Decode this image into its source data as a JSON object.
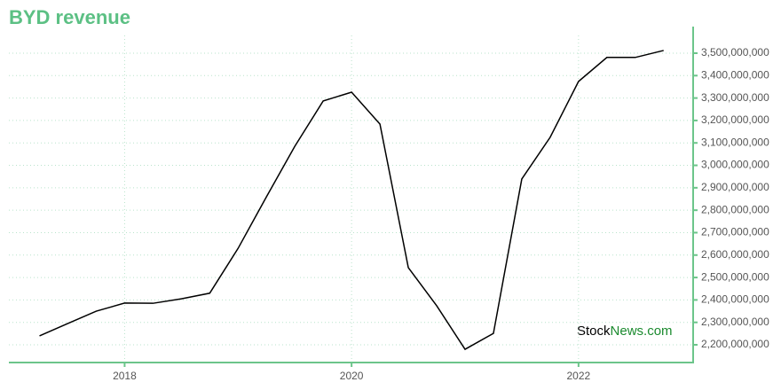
{
  "chart_data": {
    "type": "line",
    "title": "BYD revenue",
    "x": [
      2017.25,
      2017.5,
      2017.75,
      2018.0,
      2018.25,
      2018.5,
      2018.75,
      2019.0,
      2019.25,
      2019.5,
      2019.75,
      2020.0,
      2020.25,
      2020.5,
      2020.75,
      2021.0,
      2021.25,
      2021.5,
      2021.75,
      2022.0,
      2022.25,
      2022.5,
      2022.75
    ],
    "series": [
      {
        "name": "BYD revenue",
        "color": "#000000",
        "values": [
          2240000000,
          2295000000,
          2350000000,
          2386000000,
          2385000000,
          2405000000,
          2430000000,
          2630000000,
          2860000000,
          3085000000,
          3287000000,
          3326000000,
          3184000000,
          2544000000,
          2374000000,
          2180000000,
          2251000000,
          2939000000,
          3125000000,
          3374000000,
          3481000000,
          3481000000,
          3512000000
        ]
      }
    ],
    "xlim": [
      2016.98,
      2023.01
    ],
    "xticks": [
      2018,
      2020,
      2022
    ],
    "ylim": [
      2121000000,
      3579000000
    ],
    "yticks": [
      {
        "value": 2200000000,
        "label": "2,200,000,000"
      },
      {
        "value": 2300000000,
        "label": "2,300,000,000"
      },
      {
        "value": 2400000000,
        "label": "2,400,000,000"
      },
      {
        "value": 2500000000,
        "label": "2,500,000,000"
      },
      {
        "value": 2600000000,
        "label": "2,600,000,000"
      },
      {
        "value": 2700000000,
        "label": "2,700,000,000"
      },
      {
        "value": 2800000000,
        "label": "2,800,000,000"
      },
      {
        "value": 2900000000,
        "label": "2,900,000,000"
      },
      {
        "value": 3000000000,
        "label": "3,000,000,000"
      },
      {
        "value": 3100000000,
        "label": "3,100,000,000"
      },
      {
        "value": 3200000000,
        "label": "3,200,000,000"
      },
      {
        "value": 3300000000,
        "label": "3,300,000,000"
      },
      {
        "value": 3400000000,
        "label": "3,400,000,000"
      },
      {
        "value": 3500000000,
        "label": "3,500,000,000"
      }
    ],
    "grid": true,
    "watermark": [
      "Stock",
      "News.com"
    ]
  }
}
